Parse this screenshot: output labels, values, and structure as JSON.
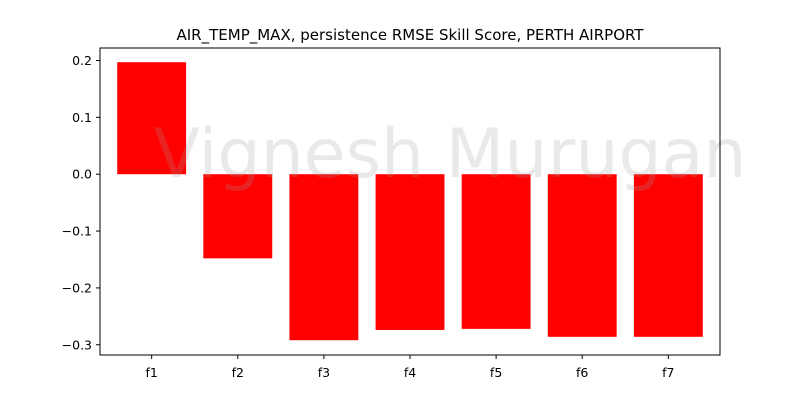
{
  "chart_data": {
    "type": "bar",
    "title": "AIR_TEMP_MAX,  persistence RMSE Skill Score,  PERTH AIRPORT",
    "xlabel": "",
    "ylabel": "",
    "categories": [
      "f1",
      "f2",
      "f3",
      "f4",
      "f5",
      "f6",
      "f7"
    ],
    "values": [
      0.197,
      -0.148,
      -0.292,
      -0.274,
      -0.272,
      -0.286,
      -0.286
    ],
    "ylim": [
      -0.318,
      0.222
    ],
    "yticks": [
      0.2,
      0.1,
      0.0,
      -0.1,
      -0.2,
      -0.3
    ],
    "ytick_labels": [
      "0.2",
      "0.1",
      "0.0",
      "−0.1",
      "−0.2",
      "−0.3"
    ],
    "bar_color": "#ff0000",
    "grid": false,
    "legend": "none",
    "watermark": "Vignesh Murugan"
  }
}
